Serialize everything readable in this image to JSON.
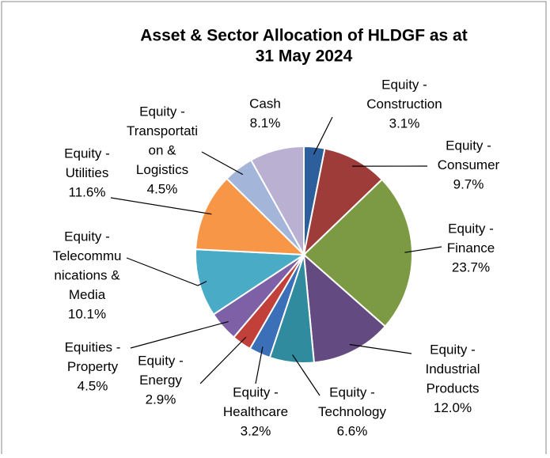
{
  "chart_data": {
    "type": "pie",
    "title": [
      "Asset & Sector Allocation of HLDGF as at",
      "31 May 2024"
    ],
    "categories": [
      [
        "Equity -",
        "Construction"
      ],
      [
        "Equity -",
        "Consumer"
      ],
      [
        "Equity -",
        "Finance"
      ],
      [
        "Equity -",
        "Industrial",
        "Products"
      ],
      [
        "Equity -",
        "Technology"
      ],
      [
        "Equity -",
        "Healthcare"
      ],
      [
        "Equity -",
        "Energy"
      ],
      [
        "Equities -",
        "Property"
      ],
      [
        "Equity -",
        "Telecommu",
        "nications &",
        "Media"
      ],
      [
        "Equity -",
        "Utilities"
      ],
      [
        "Equity -",
        "Transportati",
        "on &",
        "Logistics"
      ],
      [
        "Cash"
      ]
    ],
    "values": [
      3.1,
      9.7,
      23.7,
      12.0,
      6.6,
      3.2,
      2.9,
      4.5,
      10.1,
      11.6,
      4.5,
      8.1
    ],
    "value_labels": [
      "3.1%",
      "9.7%",
      "23.7%",
      "12.0%",
      "6.6%",
      "3.2%",
      "2.9%",
      "4.5%",
      "10.1%",
      "11.6%",
      "4.5%",
      "8.1%"
    ],
    "colors": [
      "#2d5f9c",
      "#9d3c38",
      "#7b9a43",
      "#634a80",
      "#2f8b9d",
      "#3b6fb8",
      "#c1403a",
      "#7d60a6",
      "#4aabc6",
      "#f79646",
      "#a3b6d9",
      "#bab0d2"
    ]
  }
}
